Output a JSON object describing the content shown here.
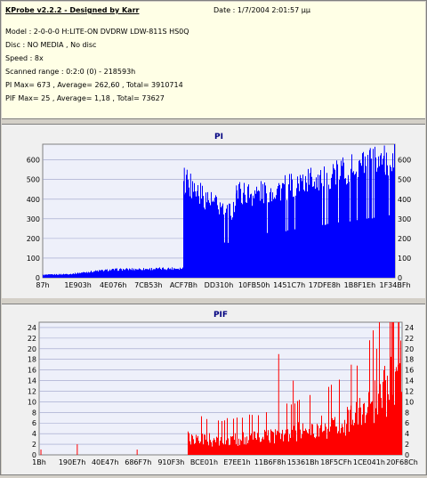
{
  "info": {
    "title": "KProbe v2.2.2 - Designed by Karr",
    "date": "Date : 1/7/2004 2:01:57 μμ",
    "model": "Model : 2-0-0-0 H:LITE-ON DVDRW LDW-811S   HS0Q",
    "disc": "Disc : NO MEDIA , No disc",
    "speed": "Speed : 8x",
    "range": "Scanned range : 0:2:0 (0) - 218593h",
    "pi": "PI Max= 673 , Average= 262,60 ,  Total= 3910714",
    "pif": "PIF Max= 25 , Average= 1,18 ,  Total= 73627"
  },
  "colors": {
    "background": "#d4d0c8",
    "info_bg": "#ffffe6",
    "plot_bg": "#eef0fa",
    "pi_bar": "#0000ff",
    "pif_bar": "#ff0000",
    "title_text": "#000080"
  },
  "chart_data": [
    {
      "type": "bar",
      "title": "PI",
      "ylim": [
        0,
        680
      ],
      "yticks": [
        0,
        100,
        200,
        300,
        400,
        500,
        600
      ],
      "ytick_labels": [
        "0",
        "100",
        "200",
        "300",
        "400",
        "500",
        "600"
      ],
      "xtick_labels": [
        "87h",
        "1E903h",
        "4E076h",
        "7CB53h",
        "ACF7Bh",
        "DD310h",
        "10FB50h",
        "1451C7h",
        "17DFE8h",
        "1B8F1Eh",
        "1F34BFh"
      ],
      "grid": true,
      "profile": {
        "x": [
          0,
          0.08,
          0.15,
          0.2,
          0.26,
          0.33,
          0.3999,
          0.4,
          0.42,
          0.5,
          0.54,
          0.55,
          0.6,
          0.7,
          0.8,
          0.9,
          1.0
        ],
        "y": [
          15,
          20,
          35,
          42,
          45,
          47,
          50,
          520,
          480,
          370,
          350,
          450,
          440,
          480,
          540,
          590,
          640
        ]
      },
      "spikes": [
        {
          "x": 0.402,
          "y": 560
        },
        {
          "x": 0.41,
          "y": 550
        },
        {
          "x": 0.42,
          "y": 530
        },
        {
          "x": 0.55,
          "y": 470
        },
        {
          "x": 0.93,
          "y": 660
        },
        {
          "x": 0.97,
          "y": 673
        }
      ]
    },
    {
      "type": "bar",
      "title": "PIF",
      "ylim": [
        0,
        25
      ],
      "yticks": [
        0,
        2,
        4,
        6,
        8,
        10,
        12,
        14,
        16,
        18,
        20,
        22,
        24
      ],
      "ytick_labels": [
        "0",
        "2",
        "4",
        "6",
        "8",
        "10",
        "12",
        "14",
        "16",
        "18",
        "20",
        "22",
        "24"
      ],
      "xtick_labels": [
        "1Bh",
        "190E7h",
        "40E47h",
        "686F7h",
        "910F3h",
        "BCE01h",
        "E7EE1h",
        "11B6F8h",
        "15361Bh",
        "18F5CFh",
        "1CE041h",
        "20F68Ch"
      ],
      "grid": true,
      "profile": {
        "x": [
          0,
          0.4099,
          0.41,
          0.5,
          0.6,
          0.7,
          0.8,
          0.88,
          0.93,
          0.97,
          1.0
        ],
        "y": [
          0,
          0,
          3.5,
          3,
          3.5,
          4.5,
          6,
          8,
          11,
          15,
          20
        ]
      },
      "spikes": [
        {
          "x": 0.005,
          "y": 1
        },
        {
          "x": 0.105,
          "y": 2
        },
        {
          "x": 0.27,
          "y": 1
        },
        {
          "x": 0.66,
          "y": 19
        },
        {
          "x": 0.7,
          "y": 14
        },
        {
          "x": 0.86,
          "y": 17
        },
        {
          "x": 0.93,
          "y": 20
        },
        {
          "x": 0.975,
          "y": 25
        },
        {
          "x": 0.99,
          "y": 25
        }
      ]
    }
  ]
}
